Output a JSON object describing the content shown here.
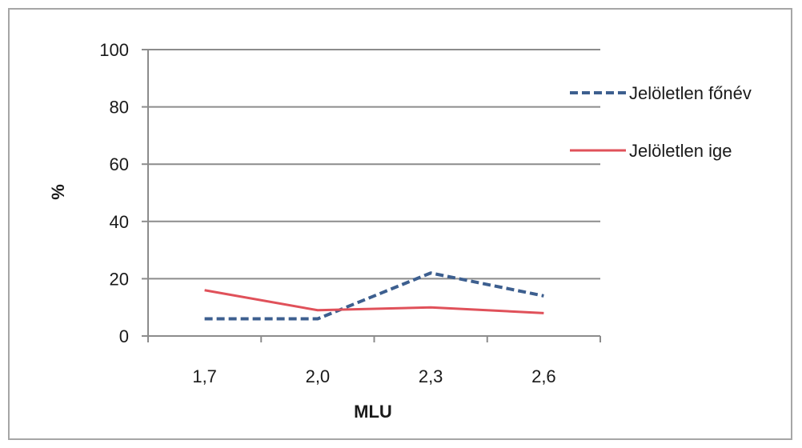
{
  "chart_data": {
    "type": "line",
    "title": "",
    "xlabel": "MLU",
    "ylabel": "%",
    "categories": [
      "1,7",
      "2,0",
      "2,3",
      "2,6"
    ],
    "ylim": [
      0,
      100
    ],
    "yticks": [
      "0",
      "20",
      "40",
      "60",
      "80",
      "100"
    ],
    "ytick_values": [
      0,
      20,
      40,
      60,
      80,
      100
    ],
    "grid": true,
    "legend_position": "right",
    "series": [
      {
        "name": "Jelöletlen főnév",
        "values": [
          6,
          6,
          22,
          14
        ],
        "color": "#3d5f8f",
        "style": "dashed"
      },
      {
        "name": "Jelöletlen ige",
        "values": [
          16,
          9,
          10,
          8
        ],
        "color": "#e0515a",
        "style": "solid"
      }
    ]
  }
}
